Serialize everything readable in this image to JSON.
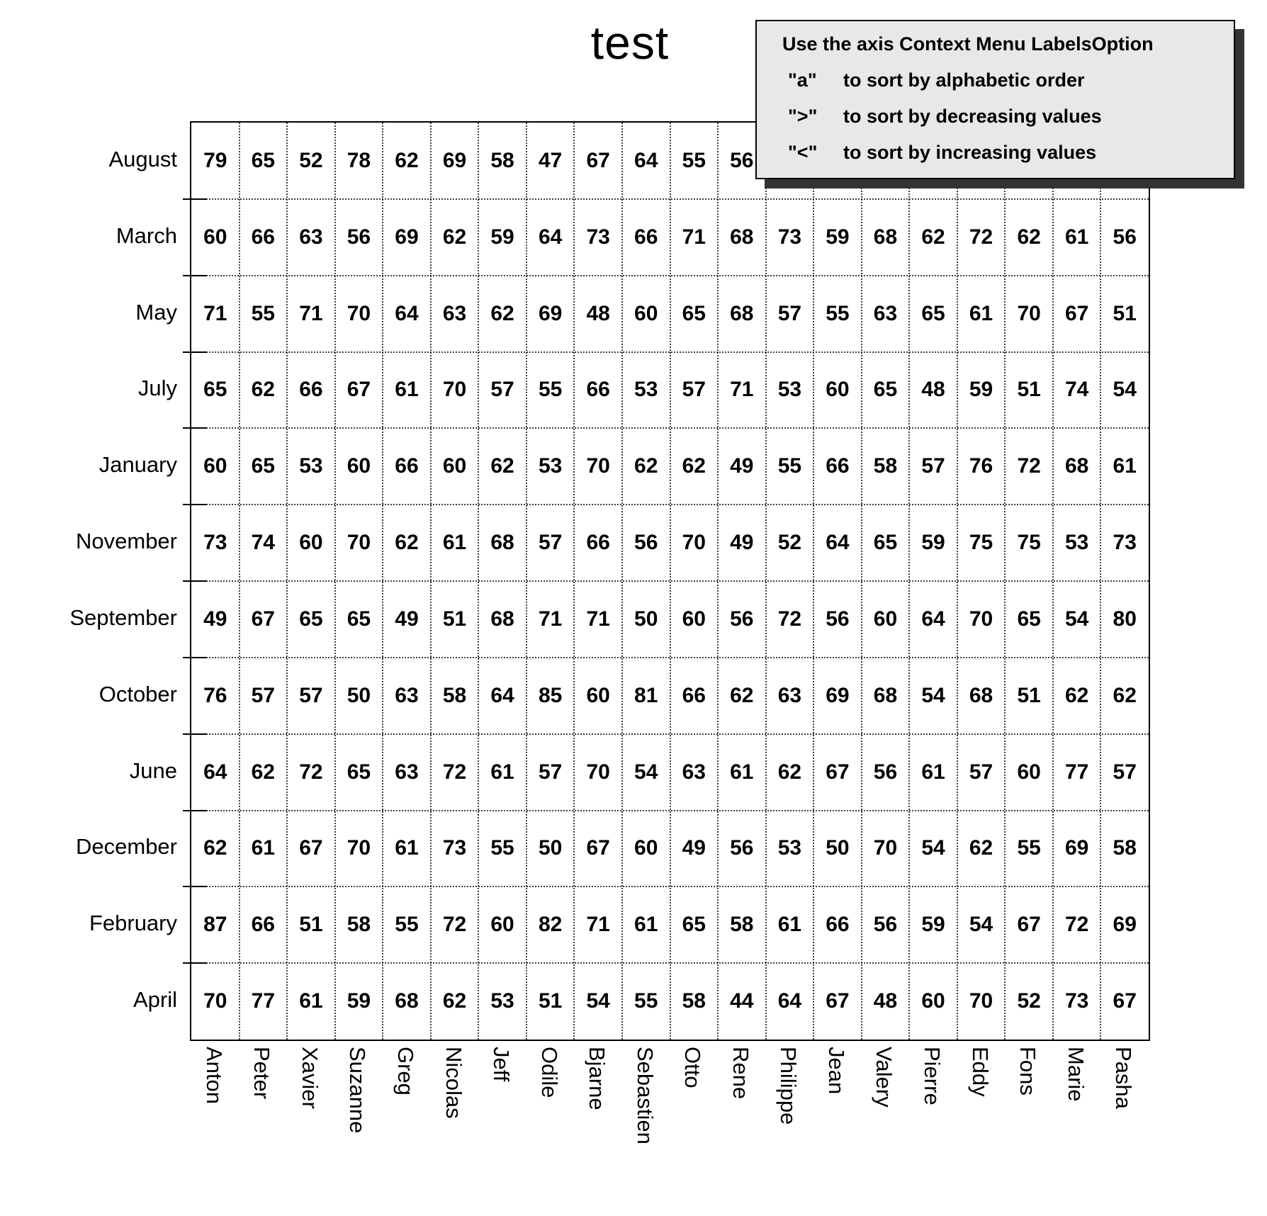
{
  "title": "test",
  "legend": {
    "heading": "Use the axis Context Menu LabelsOption",
    "items": [
      {
        "key": "\"a\"",
        "text": "to sort by alphabetic order"
      },
      {
        "key": "\">\"",
        "text": "to sort by decreasing values"
      },
      {
        "key": "\"<\"",
        "text": "to sort by increasing values"
      }
    ]
  },
  "colors": {
    "legend_background": "#e8e8e8",
    "legend_shadow": "#333333",
    "text": "#000000",
    "grid": "#000000"
  },
  "chart_data": {
    "type": "table",
    "title": "test",
    "columns": [
      "Anton",
      "Peter",
      "Xavier",
      "Suzanne",
      "Greg",
      "Nicolas",
      "Jeff",
      "Odile",
      "Bjarne",
      "Sebastien",
      "Otto",
      "Rene",
      "Philippe",
      "Jean",
      "Valery",
      "Pierre",
      "Eddy",
      "Fons",
      "Marie",
      "Pasha"
    ],
    "rows": [
      "August",
      "March",
      "May",
      "July",
      "January",
      "November",
      "September",
      "October",
      "June",
      "December",
      "February",
      "April"
    ],
    "values": [
      [
        79,
        65,
        52,
        78,
        62,
        69,
        58,
        47,
        67,
        64,
        55,
        56,
        null,
        null,
        null,
        null,
        null,
        null,
        null,
        null
      ],
      [
        60,
        66,
        63,
        56,
        69,
        62,
        59,
        64,
        73,
        66,
        71,
        68,
        73,
        59,
        68,
        62,
        72,
        62,
        61,
        56
      ],
      [
        71,
        55,
        71,
        70,
        64,
        63,
        62,
        69,
        48,
        60,
        65,
        68,
        57,
        55,
        63,
        65,
        61,
        70,
        67,
        51
      ],
      [
        65,
        62,
        66,
        67,
        61,
        70,
        57,
        55,
        66,
        53,
        57,
        71,
        53,
        60,
        65,
        48,
        59,
        51,
        74,
        54
      ],
      [
        60,
        65,
        53,
        60,
        66,
        60,
        62,
        53,
        70,
        62,
        62,
        49,
        55,
        66,
        58,
        57,
        76,
        72,
        68,
        61
      ],
      [
        73,
        74,
        60,
        70,
        62,
        61,
        68,
        57,
        66,
        56,
        70,
        49,
        52,
        64,
        65,
        59,
        75,
        75,
        53,
        73
      ],
      [
        49,
        67,
        65,
        65,
        49,
        51,
        68,
        71,
        71,
        50,
        60,
        56,
        72,
        56,
        60,
        64,
        70,
        65,
        54,
        80
      ],
      [
        76,
        57,
        57,
        50,
        63,
        58,
        64,
        85,
        60,
        81,
        66,
        62,
        63,
        69,
        68,
        54,
        68,
        51,
        62,
        62
      ],
      [
        64,
        62,
        72,
        65,
        63,
        72,
        61,
        57,
        70,
        54,
        63,
        61,
        62,
        67,
        56,
        61,
        57,
        60,
        77,
        57
      ],
      [
        62,
        61,
        67,
        70,
        61,
        73,
        55,
        50,
        67,
        60,
        49,
        56,
        53,
        50,
        70,
        54,
        62,
        55,
        69,
        58
      ],
      [
        87,
        66,
        51,
        58,
        55,
        72,
        60,
        82,
        71,
        61,
        65,
        58,
        61,
        66,
        56,
        59,
        54,
        67,
        72,
        69
      ],
      [
        70,
        77,
        61,
        59,
        68,
        62,
        53,
        51,
        54,
        55,
        58,
        44,
        64,
        67,
        48,
        60,
        70,
        52,
        73,
        67
      ]
    ],
    "note": "August values for columns Philippe through Pasha are hidden behind the legend overlay box",
    "grid": "dotted",
    "legend_position": "top-right overlay"
  }
}
